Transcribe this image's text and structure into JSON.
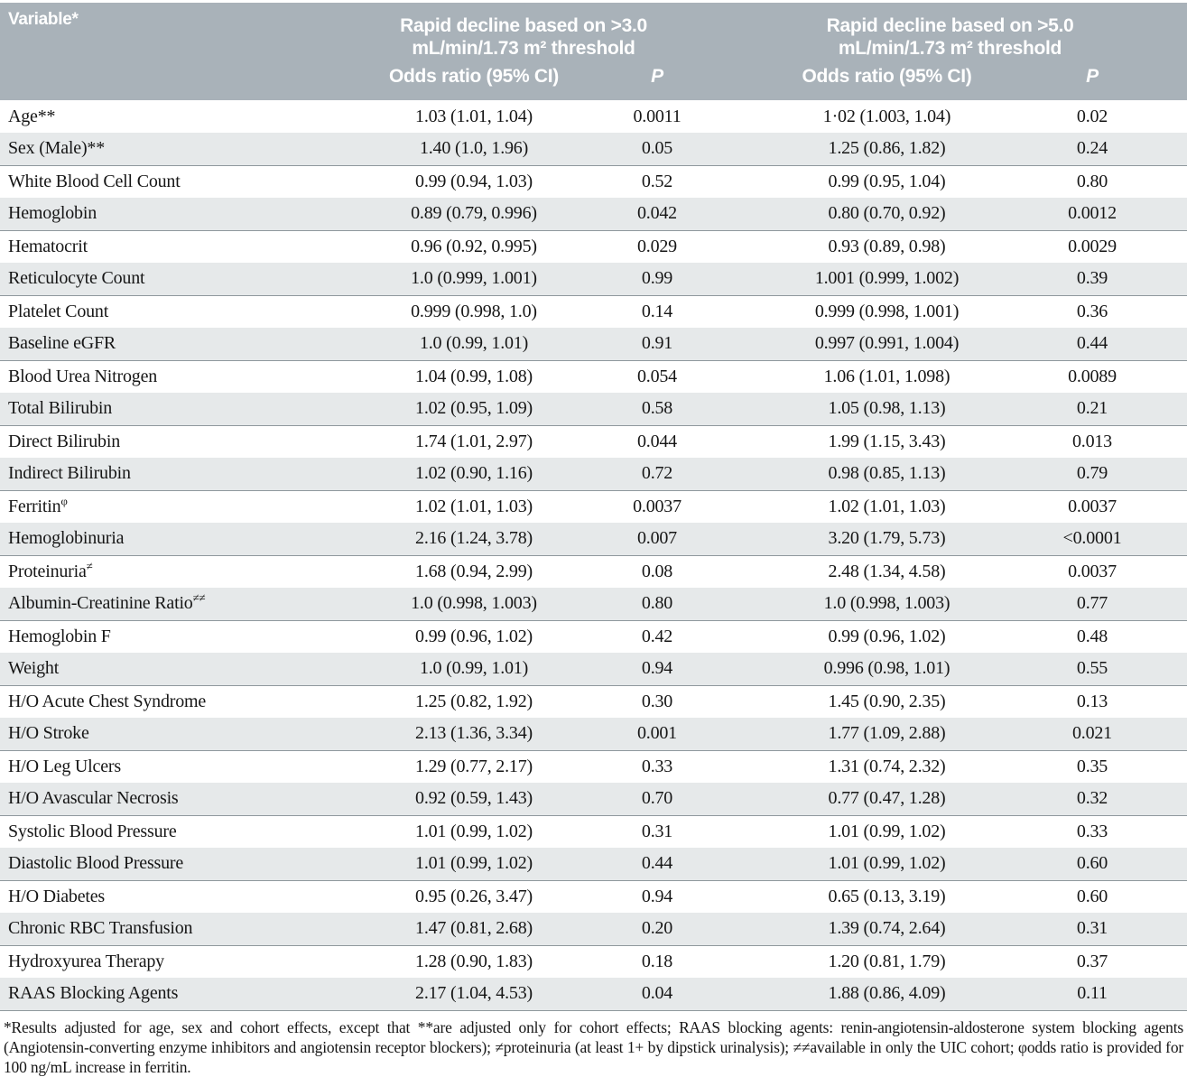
{
  "table": {
    "header": {
      "variable": "Variable*",
      "groups": [
        {
          "title_line1": "Rapid decline based on >3.0",
          "title_line2": "mL/min/1.73 m² threshold",
          "or": "Odds ratio (95% CI)",
          "p": "P"
        },
        {
          "title_line1": "Rapid decline based on >5.0",
          "title_line2": "mL/min/1.73 m² threshold",
          "or": "Odds ratio (95% CI)",
          "p": "P"
        }
      ]
    },
    "rows": [
      {
        "label": "Age**",
        "sup": "",
        "or1": "1.03 (1.01, 1.04)",
        "p1": "0.0011",
        "or2": "1·02 (1.003, 1.04)",
        "p2": "0.02"
      },
      {
        "label": "Sex (Male)**",
        "sup": "",
        "or1": "1.40 (1.0, 1.96)",
        "p1": "0.05",
        "or2": "1.25 (0.86, 1.82)",
        "p2": "0.24"
      },
      {
        "label": "White Blood Cell Count",
        "sup": "",
        "or1": "0.99 (0.94, 1.03)",
        "p1": "0.52",
        "or2": "0.99 (0.95, 1.04)",
        "p2": "0.80"
      },
      {
        "label": "Hemoglobin",
        "sup": "",
        "or1": "0.89 (0.79, 0.996)",
        "p1": "0.042",
        "or2": "0.80 (0.70, 0.92)",
        "p2": "0.0012"
      },
      {
        "label": "Hematocrit",
        "sup": "",
        "or1": "0.96 (0.92, 0.995)",
        "p1": "0.029",
        "or2": "0.93 (0.89, 0.98)",
        "p2": "0.0029"
      },
      {
        "label": "Reticulocyte Count",
        "sup": "",
        "or1": "1.0 (0.999, 1.001)",
        "p1": "0.99",
        "or2": "1.001 (0.999, 1.002)",
        "p2": "0.39"
      },
      {
        "label": "Platelet Count",
        "sup": "",
        "or1": "0.999 (0.998, 1.0)",
        "p1": "0.14",
        "or2": "0.999 (0.998, 1.001)",
        "p2": "0.36"
      },
      {
        "label": "Baseline eGFR",
        "sup": "",
        "or1": "1.0 (0.99, 1.01)",
        "p1": "0.91",
        "or2": "0.997 (0.991, 1.004)",
        "p2": "0.44"
      },
      {
        "label": "Blood Urea Nitrogen",
        "sup": "",
        "or1": "1.04 (0.99, 1.08)",
        "p1": "0.054",
        "or2": "1.06 (1.01, 1.098)",
        "p2": "0.0089"
      },
      {
        "label": "Total Bilirubin",
        "sup": "",
        "or1": "1.02 (0.95, 1.09)",
        "p1": "0.58",
        "or2": "1.05 (0.98, 1.13)",
        "p2": "0.21"
      },
      {
        "label": "Direct Bilirubin",
        "sup": "",
        "or1": "1.74 (1.01, 2.97)",
        "p1": "0.044",
        "or2": "1.99 (1.15, 3.43)",
        "p2": "0.013"
      },
      {
        "label": "Indirect Bilirubin",
        "sup": "",
        "or1": "1.02 (0.90, 1.16)",
        "p1": "0.72",
        "or2": "0.98 (0.85, 1.13)",
        "p2": "0.79"
      },
      {
        "label": "Ferritin",
        "sup": "φ",
        "or1": "1.02 (1.01, 1.03)",
        "p1": "0.0037",
        "or2": "1.02 (1.01, 1.03)",
        "p2": "0.0037"
      },
      {
        "label": "Hemoglobinuria",
        "sup": "",
        "or1": "2.16 (1.24, 3.78)",
        "p1": "0.007",
        "or2": "3.20 (1.79, 5.73)",
        "p2": "<0.0001"
      },
      {
        "label": "Proteinuria",
        "sup": "≠",
        "or1": "1.68 (0.94, 2.99)",
        "p1": "0.08",
        "or2": "2.48 (1.34, 4.58)",
        "p2": "0.0037"
      },
      {
        "label": "Albumin-Creatinine Ratio",
        "sup": "≠≠",
        "or1": "1.0 (0.998, 1.003)",
        "p1": "0.80",
        "or2": "1.0 (0.998, 1.003)",
        "p2": "0.77"
      },
      {
        "label": "Hemoglobin F",
        "sup": "",
        "or1": "0.99 (0.96, 1.02)",
        "p1": "0.42",
        "or2": "0.99 (0.96, 1.02)",
        "p2": "0.48"
      },
      {
        "label": "Weight",
        "sup": "",
        "or1": "1.0 (0.99, 1.01)",
        "p1": "0.94",
        "or2": "0.996 (0.98, 1.01)",
        "p2": "0.55"
      },
      {
        "label": "H/O Acute Chest Syndrome",
        "sup": "",
        "or1": "1.25 (0.82, 1.92)",
        "p1": "0.30",
        "or2": "1.45 (0.90, 2.35)",
        "p2": "0.13"
      },
      {
        "label": "H/O Stroke",
        "sup": "",
        "or1": "2.13 (1.36, 3.34)",
        "p1": "0.001",
        "or2": "1.77 (1.09, 2.88)",
        "p2": "0.021"
      },
      {
        "label": "H/O Leg Ulcers",
        "sup": "",
        "or1": "1.29 (0.77, 2.17)",
        "p1": "0.33",
        "or2": "1.31 (0.74, 2.32)",
        "p2": "0.35"
      },
      {
        "label": "H/O Avascular Necrosis",
        "sup": "",
        "or1": "0.92 (0.59, 1.43)",
        "p1": "0.70",
        "or2": "0.77 (0.47, 1.28)",
        "p2": "0.32"
      },
      {
        "label": "Systolic Blood Pressure",
        "sup": "",
        "or1": "1.01 (0.99, 1.02)",
        "p1": "0.31",
        "or2": "1.01 (0.99, 1.02)",
        "p2": "0.33"
      },
      {
        "label": "Diastolic Blood Pressure",
        "sup": "",
        "or1": "1.01 (0.99, 1.02)",
        "p1": "0.44",
        "or2": "1.01 (0.99, 1.02)",
        "p2": "0.60"
      },
      {
        "label": "H/O Diabetes",
        "sup": "",
        "or1": "0.95 (0.26, 3.47)",
        "p1": "0.94",
        "or2": "0.65 (0.13, 3.19)",
        "p2": "0.60"
      },
      {
        "label": "Chronic RBC Transfusion",
        "sup": "",
        "or1": "1.47 (0.81, 2.68)",
        "p1": "0.20",
        "or2": "1.39 (0.74, 2.64)",
        "p2": "0.31"
      },
      {
        "label": "Hydroxyurea Therapy",
        "sup": "",
        "or1": "1.28 (0.90, 1.83)",
        "p1": "0.18",
        "or2": "1.20 (0.81, 1.79)",
        "p2": "0.37"
      },
      {
        "label": "RAAS Blocking Agents",
        "sup": "",
        "or1": "2.17 (1.04, 4.53)",
        "p1": "0.04",
        "or2": "1.88 (0.86, 4.09)",
        "p2": "0.11"
      }
    ]
  },
  "footnote": "*Results adjusted for age, sex and cohort effects, except that **are adjusted only for cohort effects; RAAS blocking agents: renin-angiotensin-aldosterone system blocking agents (Angiotensin-converting enzyme inhibitors and angiotensin receptor blockers); ≠proteinuria (at least 1+ by dipstick urinalysis); ≠≠available in only the UIC cohort; φodds ratio is provided for 100 ng/mL increase in ferritin.",
  "colors": {
    "header_bg": "#a9b2b9",
    "stripe_bg": "#e6e9ea",
    "rule": "#8f989d",
    "text": "#161616",
    "header_text": "#ffffff"
  }
}
